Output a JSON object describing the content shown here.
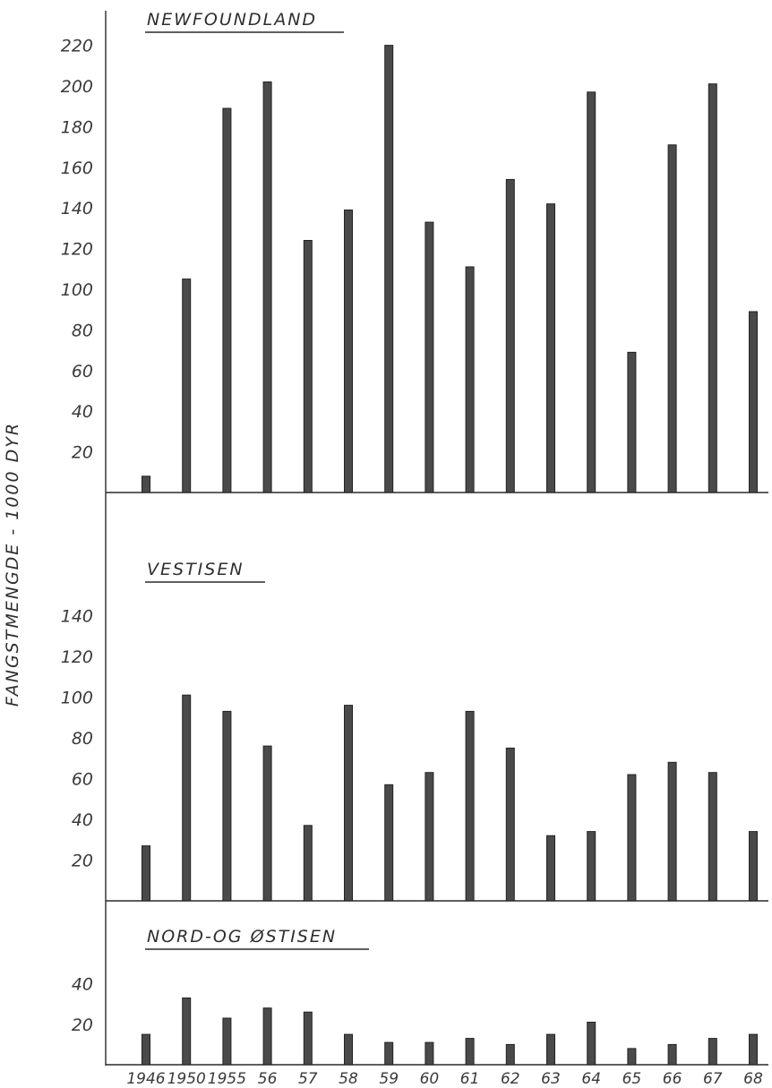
{
  "chart_data": {
    "type": "bar",
    "ylabel": "FANGSTMENGDE - 1000 DYR",
    "categories": [
      "1946",
      "1950",
      "1955",
      "56",
      "57",
      "58",
      "59",
      "60",
      "61",
      "62",
      "63",
      "64",
      "65",
      "66",
      "67",
      "68"
    ],
    "panels": [
      {
        "title": "NEWFOUNDLAND",
        "yticks": [
          20,
          40,
          60,
          80,
          100,
          120,
          140,
          160,
          180,
          200,
          220
        ],
        "ylim": [
          0,
          230
        ],
        "values": [
          8,
          105,
          189,
          202,
          124,
          139,
          220,
          133,
          111,
          154,
          142,
          197,
          69,
          171,
          201,
          89
        ]
      },
      {
        "title": "VESTISEN",
        "yticks": [
          20,
          40,
          60,
          80,
          100,
          120,
          140
        ],
        "ylim": [
          0,
          150
        ],
        "values": [
          27,
          101,
          93,
          76,
          37,
          96,
          57,
          63,
          93,
          75,
          32,
          34,
          62,
          68,
          63,
          34
        ]
      },
      {
        "title": "NORD-OG ØSTISEN",
        "yticks": [
          20,
          40
        ],
        "ylim": [
          0,
          45
        ],
        "values": [
          15,
          33,
          23,
          28,
          26,
          15,
          11,
          11,
          13,
          10,
          15,
          21,
          8,
          10,
          13,
          15
        ]
      }
    ],
    "grid": false,
    "legend": "none"
  },
  "colors": {
    "bar": "#4a4a4a",
    "axis": "#2a2a2a",
    "text": "#3a3a3a"
  }
}
